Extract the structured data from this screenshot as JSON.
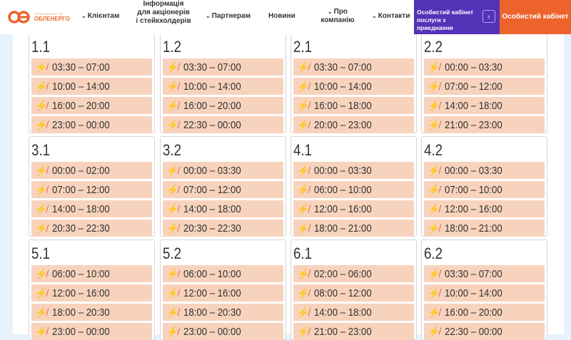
{
  "header": {
    "logo_small": "ПРИКАРПАТТЯ",
    "logo_big": "ОБЛЕНЕРГО",
    "nav": [
      "Клієнтам",
      "Інформація для акціонерів і стейкхолдерів",
      "Партнерам",
      "Новини",
      "Про компанію",
      "Контакти"
    ],
    "cabinet_services": "Особистий кабінет послуги з приєднання",
    "cabinet": "Особистий кабінет"
  },
  "groups": [
    {
      "name": "1.1",
      "slots": [
        "03:30 – 07:00",
        "10:00 – 14:00",
        "16:00 – 20:00",
        "23:00 – 00:00"
      ]
    },
    {
      "name": "1.2",
      "slots": [
        "03:30 – 07:00",
        "10:00 – 14:00",
        "16:00 – 20:00",
        "22:30 – 00:00"
      ]
    },
    {
      "name": "2.1",
      "slots": [
        "03:30 – 07:00",
        "10:00 – 14:00",
        "16:00 – 18:00",
        "20:00 – 23:00"
      ]
    },
    {
      "name": "2.2",
      "slots": [
        "00:00 – 03:30",
        "07:00 – 12:00",
        "14:00 – 18:00",
        "21:00 – 23:00"
      ]
    },
    {
      "name": "3.1",
      "slots": [
        "00:00 – 02:00",
        "07:00 – 12:00",
        "14:00 – 18:00",
        "20:30 – 22:30"
      ]
    },
    {
      "name": "3.2",
      "slots": [
        "00:00 – 03:30",
        "07:00 – 12:00",
        "14:00 – 18:00",
        "20:30 – 22:30"
      ]
    },
    {
      "name": "4.1",
      "slots": [
        "00:00 – 03:30",
        "06:00 – 10:00",
        "12:00 – 16:00",
        "18:00 – 21:00"
      ]
    },
    {
      "name": "4.2",
      "slots": [
        "00:00 – 03:30",
        "07:00 – 10:00",
        "12:00 – 16:00",
        "18:00 – 21:00"
      ]
    },
    {
      "name": "5.1",
      "slots": [
        "06:00 – 10:00",
        "12:00 – 16:00",
        "18:00 – 20:30",
        "23:00 – 00:00"
      ]
    },
    {
      "name": "5.2",
      "slots": [
        "06:00 – 10:00",
        "12:00 – 16:00",
        "18:00 – 20:30",
        "23:00 – 00:00"
      ]
    },
    {
      "name": "6.1",
      "slots": [
        "02:00 – 06:00",
        "08:00 – 12:00",
        "14:00 – 18:00",
        "21:00 – 23:00"
      ]
    },
    {
      "name": "6.2",
      "slots": [
        "03:30 – 07:00",
        "10:00 – 14:00",
        "16:00 – 20:00",
        "22:30 – 00:00"
      ]
    }
  ]
}
